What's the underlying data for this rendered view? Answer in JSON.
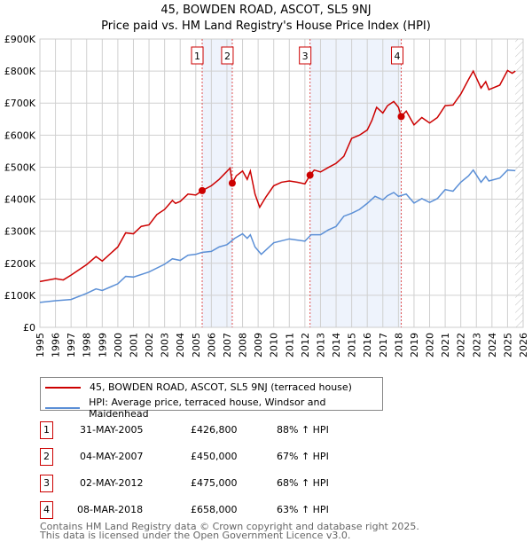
{
  "title": "45, BOWDEN ROAD, ASCOT, SL5 9NJ",
  "subtitle": "Price paid vs. HM Land Registry's House Price Index (HPI)",
  "chart_data": {
    "type": "line",
    "title": "45, BOWDEN ROAD, ASCOT, SL5 9NJ — Price paid vs. HM Land Registry's House Price Index (HPI)",
    "xlim": [
      1995,
      2026
    ],
    "ylim": [
      0,
      900000
    ],
    "x_ticks": [
      "1995",
      "1996",
      "1997",
      "1998",
      "1999",
      "2000",
      "2001",
      "2002",
      "2003",
      "2004",
      "2005",
      "2006",
      "2007",
      "2008",
      "2009",
      "2010",
      "2011",
      "2012",
      "2013",
      "2014",
      "2015",
      "2016",
      "2017",
      "2018",
      "2019",
      "2020",
      "2021",
      "2022",
      "2023",
      "2024",
      "2025",
      "2026"
    ],
    "y_ticks": [
      {
        "v": 0,
        "label": "£0"
      },
      {
        "v": 100000,
        "label": "£100K"
      },
      {
        "v": 200000,
        "label": "£200K"
      },
      {
        "v": 300000,
        "label": "£300K"
      },
      {
        "v": 400000,
        "label": "£400K"
      },
      {
        "v": 500000,
        "label": "£500K"
      },
      {
        "v": 600000,
        "label": "£600K"
      },
      {
        "v": 700000,
        "label": "£700K"
      },
      {
        "v": 800000,
        "label": "£800K"
      },
      {
        "v": 900000,
        "label": "£900K"
      }
    ],
    "grid": true,
    "series": [
      {
        "name": "45, BOWDEN ROAD, ASCOT, SL5 9NJ (terraced house)",
        "color": "#cc0000",
        "points": [
          [
            1995,
            143
          ],
          [
            1996,
            152
          ],
          [
            1996.5,
            148
          ],
          [
            1997,
            163
          ],
          [
            1998,
            196
          ],
          [
            1998.6,
            221
          ],
          [
            1999,
            207
          ],
          [
            2000,
            251
          ],
          [
            2000.5,
            295
          ],
          [
            2001,
            292
          ],
          [
            2001.5,
            315
          ],
          [
            2002,
            320
          ],
          [
            2002.5,
            352
          ],
          [
            2003,
            368
          ],
          [
            2003.5,
            396
          ],
          [
            2003.7,
            387
          ],
          [
            2004,
            393
          ],
          [
            2004.5,
            416
          ],
          [
            2005,
            413
          ],
          [
            2005.41,
            426.8
          ],
          [
            2006,
            442
          ],
          [
            2006.5,
            462
          ],
          [
            2007.2,
            497
          ],
          [
            2007.34,
            450
          ],
          [
            2007.6,
            473
          ],
          [
            2008,
            488
          ],
          [
            2008.3,
            462
          ],
          [
            2008.5,
            488
          ],
          [
            2008.8,
            416
          ],
          [
            2009.1,
            375
          ],
          [
            2009.5,
            407
          ],
          [
            2010,
            442
          ],
          [
            2010.5,
            453
          ],
          [
            2011,
            457
          ],
          [
            2011.5,
            453
          ],
          [
            2012,
            448
          ],
          [
            2012.33,
            475
          ],
          [
            2012.6,
            491
          ],
          [
            2013,
            485
          ],
          [
            2013.5,
            499
          ],
          [
            2014,
            512
          ],
          [
            2014.5,
            534
          ],
          [
            2015,
            590
          ],
          [
            2015.5,
            600
          ],
          [
            2016,
            616
          ],
          [
            2016.3,
            646
          ],
          [
            2016.6,
            687
          ],
          [
            2017,
            669
          ],
          [
            2017.3,
            692
          ],
          [
            2017.7,
            705
          ],
          [
            2018,
            687
          ],
          [
            2018.18,
            658
          ],
          [
            2018.5,
            675
          ],
          [
            2019,
            632
          ],
          [
            2019.5,
            655
          ],
          [
            2020,
            638
          ],
          [
            2020.5,
            655
          ],
          [
            2021,
            692
          ],
          [
            2021.5,
            694
          ],
          [
            2022,
            728
          ],
          [
            2022.5,
            774
          ],
          [
            2022.8,
            800
          ],
          [
            2023.3,
            747
          ],
          [
            2023.6,
            767
          ],
          [
            2023.8,
            742
          ],
          [
            2024.5,
            756
          ],
          [
            2025,
            802
          ],
          [
            2025.3,
            793
          ],
          [
            2025.5,
            800
          ]
        ]
      },
      {
        "name": "HPI: Average price, terraced house, Windsor and Maidenhead",
        "color": "#5b8fd6",
        "points": [
          [
            1995,
            78
          ],
          [
            1996,
            83
          ],
          [
            1997,
            87
          ],
          [
            1998,
            106
          ],
          [
            1998.6,
            120
          ],
          [
            1999,
            115
          ],
          [
            2000,
            136
          ],
          [
            2000.5,
            159
          ],
          [
            2001,
            157
          ],
          [
            2002,
            173
          ],
          [
            2003,
            197
          ],
          [
            2003.5,
            214
          ],
          [
            2004,
            209
          ],
          [
            2004.5,
            225
          ],
          [
            2005,
            228
          ],
          [
            2005.4,
            234
          ],
          [
            2006,
            237
          ],
          [
            2006.5,
            251
          ],
          [
            2007,
            258
          ],
          [
            2007.5,
            278
          ],
          [
            2008,
            292
          ],
          [
            2008.3,
            278
          ],
          [
            2008.5,
            289
          ],
          [
            2008.8,
            251
          ],
          [
            2009.2,
            228
          ],
          [
            2009.6,
            246
          ],
          [
            2010,
            264
          ],
          [
            2011,
            276
          ],
          [
            2012,
            269
          ],
          [
            2012.4,
            289
          ],
          [
            2013,
            289
          ],
          [
            2013.5,
            304
          ],
          [
            2014,
            315
          ],
          [
            2014.5,
            347
          ],
          [
            2015,
            356
          ],
          [
            2015.5,
            368
          ],
          [
            2016,
            387
          ],
          [
            2016.5,
            409
          ],
          [
            2017,
            398
          ],
          [
            2017.3,
            411
          ],
          [
            2017.7,
            421
          ],
          [
            2018,
            409
          ],
          [
            2018.5,
            416
          ],
          [
            2019,
            388
          ],
          [
            2019.5,
            402
          ],
          [
            2020,
            390
          ],
          [
            2020.5,
            402
          ],
          [
            2021,
            430
          ],
          [
            2021.5,
            425
          ],
          [
            2022,
            453
          ],
          [
            2022.5,
            473
          ],
          [
            2022.8,
            491
          ],
          [
            2023.3,
            453
          ],
          [
            2023.6,
            471
          ],
          [
            2023.8,
            457
          ],
          [
            2024.5,
            466
          ],
          [
            2025,
            491
          ],
          [
            2025.5,
            489
          ]
        ]
      }
    ],
    "y_units_of_points": "thousands GBP",
    "sales": [
      {
        "n": "1",
        "x": 2005.41,
        "y": 426800
      },
      {
        "n": "2",
        "x": 2007.34,
        "y": 450000
      },
      {
        "n": "3",
        "x": 2012.33,
        "y": 475000
      },
      {
        "n": "4",
        "x": 2018.18,
        "y": 658000
      }
    ],
    "shaded_ranges": [
      [
        2005.41,
        2007.34
      ],
      [
        2012.33,
        2018.18
      ]
    ],
    "hatched_from": 2025.5
  },
  "legend": {
    "red": "45, BOWDEN ROAD, ASCOT, SL5 9NJ (terraced house)",
    "blue": "HPI: Average price, terraced house, Windsor and Maidenhead"
  },
  "transactions": [
    {
      "n": "1",
      "date": "31-MAY-2005",
      "price": "£426,800",
      "hpi": "88% ↑ HPI"
    },
    {
      "n": "2",
      "date": "04-MAY-2007",
      "price": "£450,000",
      "hpi": "67% ↑ HPI"
    },
    {
      "n": "3",
      "date": "02-MAY-2012",
      "price": "£475,000",
      "hpi": "68% ↑ HPI"
    },
    {
      "n": "4",
      "date": "08-MAR-2018",
      "price": "£658,000",
      "hpi": "63% ↑ HPI"
    }
  ],
  "footer": {
    "line1": "Contains HM Land Registry data © Crown copyright and database right 2025.",
    "line2": "This data is licensed under the Open Government Licence v3.0."
  }
}
